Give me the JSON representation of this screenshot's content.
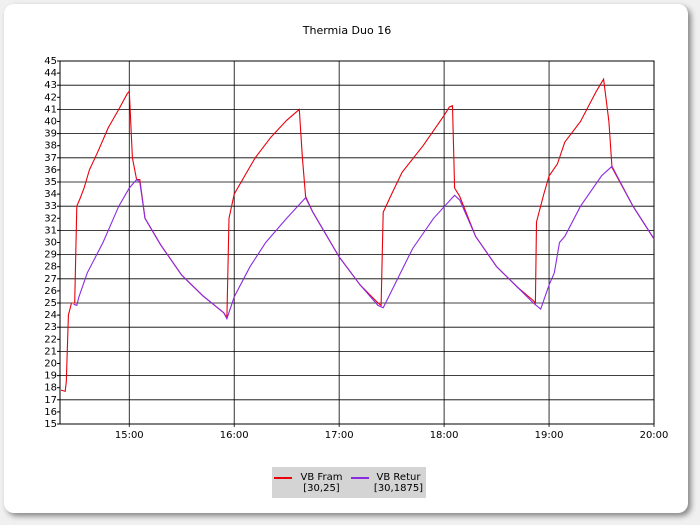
{
  "chart_data": {
    "type": "line",
    "title": "Thermia Duo 16",
    "xlim": [
      14.34,
      20
    ],
    "ylim": [
      15,
      45
    ],
    "xticks": [
      {
        "value": 15,
        "label": "15:00"
      },
      {
        "value": 16,
        "label": "16:00"
      },
      {
        "value": 17,
        "label": "17:00"
      },
      {
        "value": 18,
        "label": "18:00"
      },
      {
        "value": 19,
        "label": "19:00"
      },
      {
        "value": 20,
        "label": "20:00"
      }
    ],
    "yticks": [
      15,
      16,
      17,
      18,
      19,
      20,
      21,
      22,
      23,
      24,
      25,
      26,
      27,
      28,
      29,
      30,
      31,
      32,
      33,
      34,
      35,
      36,
      37,
      38,
      39,
      40,
      41,
      42,
      43,
      44,
      45
    ],
    "grid": true,
    "series": [
      {
        "name": "VB Fram [30,25]",
        "color": "#e8000b",
        "x": [
          14.35,
          14.39,
          14.4,
          14.42,
          14.45,
          14.48,
          14.5,
          14.53,
          14.57,
          14.62,
          14.7,
          14.8,
          14.9,
          14.98,
          15.0,
          15.03,
          15.07,
          15.1,
          15.15,
          15.3,
          15.5,
          15.7,
          15.9,
          15.93,
          15.95,
          16.0,
          16.1,
          16.2,
          16.35,
          16.5,
          16.62,
          16.65,
          16.68,
          16.75,
          17.0,
          17.2,
          17.37,
          17.4,
          17.42,
          17.5,
          17.6,
          17.8,
          18.0,
          18.05,
          18.08,
          18.1,
          18.15,
          18.3,
          18.5,
          18.7,
          18.85,
          18.87,
          18.88,
          18.95,
          19.0,
          19.08,
          19.15,
          19.3,
          19.45,
          19.52,
          19.57,
          19.6,
          19.8,
          20.0
        ],
        "values": [
          17.8,
          17.7,
          18.5,
          24,
          25,
          25,
          33,
          33.6,
          34.5,
          36,
          37.5,
          39.5,
          41,
          42.3,
          42.5,
          37,
          35.2,
          35.2,
          32,
          29.8,
          27.3,
          25.6,
          24.2,
          23.8,
          32,
          34,
          35.5,
          37,
          38.7,
          40.1,
          41,
          37,
          33.8,
          32.5,
          28.8,
          26.5,
          25,
          24.8,
          32.5,
          34,
          35.8,
          38,
          40.5,
          41.2,
          41.3,
          34.5,
          33.8,
          30.5,
          28,
          26.3,
          25.2,
          25,
          31.7,
          34,
          35.5,
          36.5,
          38.3,
          40,
          42.5,
          43.5,
          40,
          36.2,
          33,
          30.3
        ]
      },
      {
        "name": "VB Retur [30,1875]",
        "color": "#8a2be2",
        "x": [
          14.47,
          14.5,
          14.52,
          14.6,
          14.75,
          14.9,
          15.0,
          15.07,
          15.1,
          15.15,
          15.3,
          15.5,
          15.7,
          15.9,
          15.93,
          16.0,
          16.15,
          16.3,
          16.5,
          16.68,
          16.75,
          17.0,
          17.2,
          17.37,
          17.42,
          17.5,
          17.7,
          17.9,
          18.1,
          18.15,
          18.3,
          18.5,
          18.7,
          18.85,
          18.92,
          19.0,
          19.05,
          19.1,
          19.15,
          19.3,
          19.5,
          19.6,
          19.8,
          20.0
        ],
        "values": [
          24.9,
          24.8,
          25.5,
          27.5,
          30,
          33,
          34.5,
          35.2,
          35,
          32,
          29.8,
          27.3,
          25.6,
          24.2,
          23.7,
          25.5,
          28,
          30,
          32,
          33.7,
          32.5,
          28.8,
          26.5,
          24.8,
          24.6,
          26,
          29.5,
          32,
          33.9,
          33.5,
          30.5,
          28,
          26.3,
          25,
          24.5,
          26.5,
          27.5,
          30,
          30.5,
          33,
          35.5,
          36.3,
          33,
          30.3
        ]
      }
    ]
  }
}
